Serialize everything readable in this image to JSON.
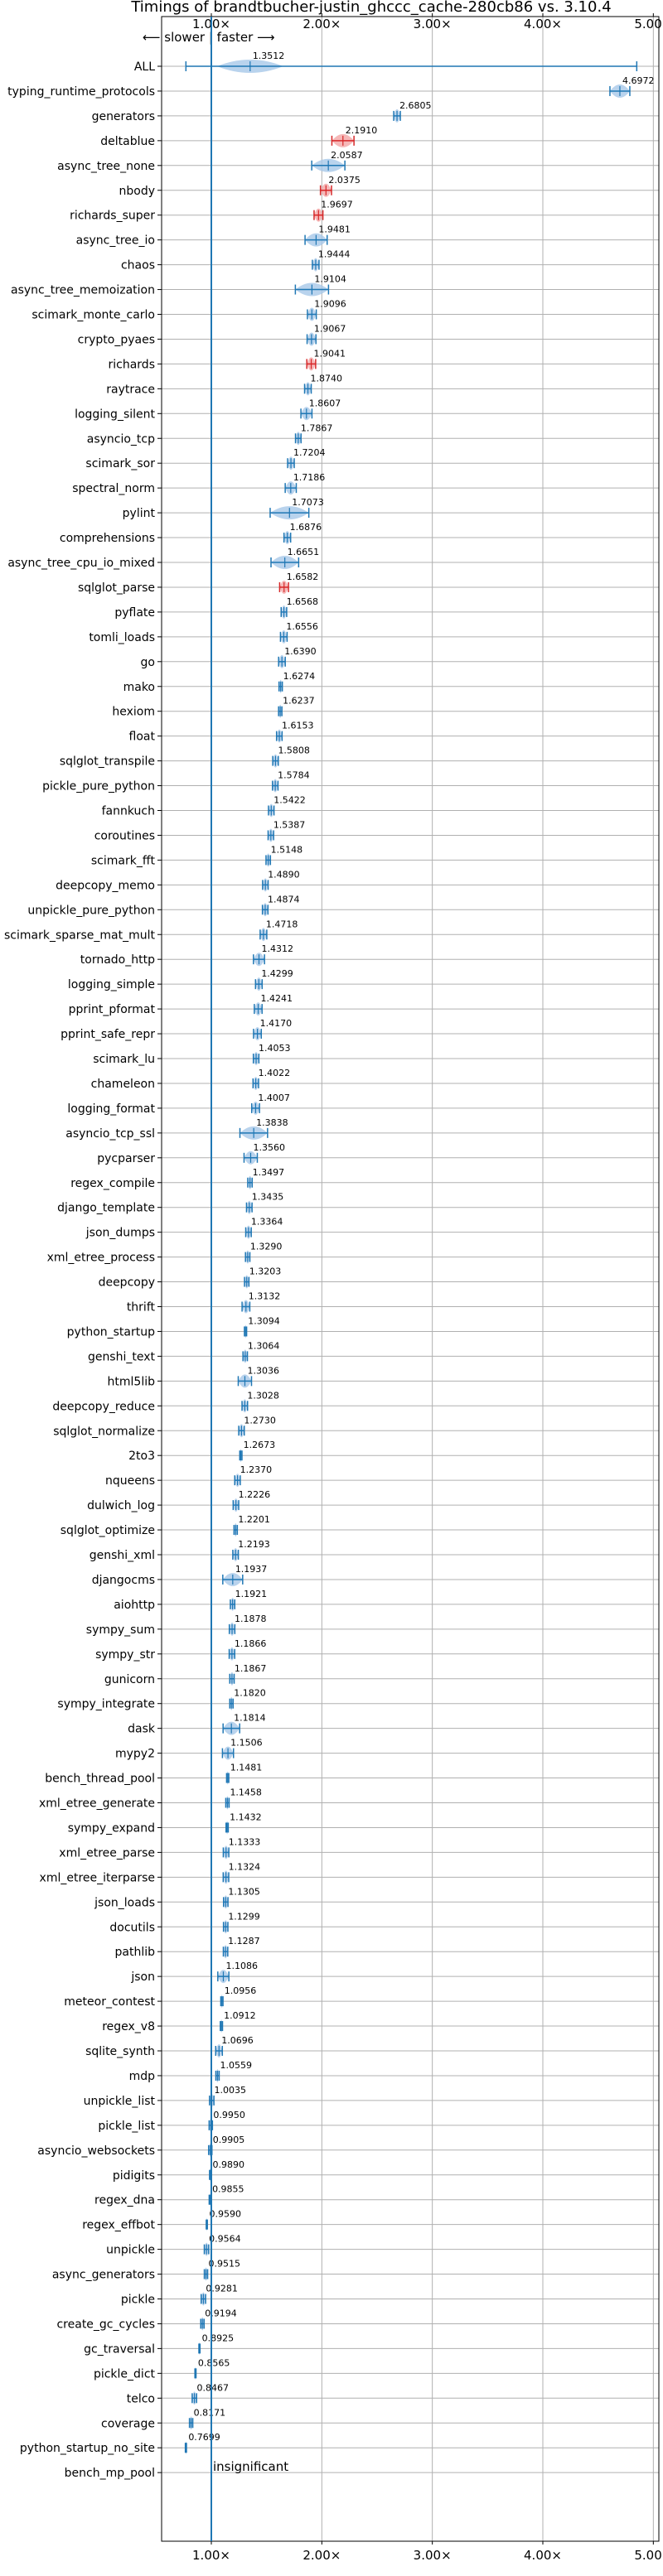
{
  "chart_data": {
    "type": "violin",
    "title": "Timings of brandtbucher-justin_ghccc_cache-280cb86 vs. 3.10.4",
    "direction_label": "⟵ slower | faster ⟶",
    "insignificant_label": "insignificant",
    "x_ticks": [
      {
        "value": 1,
        "label": "1.00×"
      },
      {
        "value": 2,
        "label": "2.00×"
      },
      {
        "value": 3,
        "label": "3.00×"
      },
      {
        "value": 4,
        "label": "4.00×"
      },
      {
        "value": 5,
        "label": "5.00×"
      }
    ],
    "xlim": [
      0.55,
      5.05
    ],
    "reference_line": 1.0,
    "colors": {
      "significant": "#1f77b4",
      "regression": "#d62728",
      "grid": "#b0b0b0"
    },
    "benchmarks": [
      {
        "name": "ALL",
        "value": 1.3512,
        "label": "1.3512",
        "spread": 0.6,
        "whisker_min": 0.77,
        "whisker_max": 4.85
      },
      {
        "name": "typing_runtime_protocols",
        "value": 4.6972,
        "label": "4.6972",
        "spread": 0.18
      },
      {
        "name": "generators",
        "value": 2.6805,
        "label": "2.6805",
        "spread": 0.06
      },
      {
        "name": "deltablue",
        "value": 2.191,
        "label": "2.1910",
        "spread": 0.2,
        "regression": true
      },
      {
        "name": "async_tree_none",
        "value": 2.0587,
        "label": "2.0587",
        "spread": 0.3
      },
      {
        "name": "nbody",
        "value": 2.0375,
        "label": "2.0375",
        "spread": 0.1,
        "regression": true
      },
      {
        "name": "richards_super",
        "value": 1.9697,
        "label": "1.9697",
        "spread": 0.08,
        "regression": true
      },
      {
        "name": "async_tree_io",
        "value": 1.9481,
        "label": "1.9481",
        "spread": 0.2
      },
      {
        "name": "chaos",
        "value": 1.9444,
        "label": "1.9444",
        "spread": 0.06
      },
      {
        "name": "async_tree_memoization",
        "value": 1.9104,
        "label": "1.9104",
        "spread": 0.3
      },
      {
        "name": "scimark_monte_carlo",
        "value": 1.9096,
        "label": "1.9096",
        "spread": 0.08
      },
      {
        "name": "crypto_pyaes",
        "value": 1.9067,
        "label": "1.9067",
        "spread": 0.08
      },
      {
        "name": "richards",
        "value": 1.9041,
        "label": "1.9041",
        "spread": 0.08,
        "regression": true
      },
      {
        "name": "raytrace",
        "value": 1.874,
        "label": "1.8740",
        "spread": 0.06
      },
      {
        "name": "logging_silent",
        "value": 1.8607,
        "label": "1.8607",
        "spread": 0.1
      },
      {
        "name": "asyncio_tcp",
        "value": 1.7867,
        "label": "1.7867",
        "spread": 0.05
      },
      {
        "name": "scimark_sor",
        "value": 1.7204,
        "label": "1.7204",
        "spread": 0.06
      },
      {
        "name": "spectral_norm",
        "value": 1.7186,
        "label": "1.7186",
        "spread": 0.1
      },
      {
        "name": "pylint",
        "value": 1.7073,
        "label": "1.7073",
        "spread": 0.35
      },
      {
        "name": "comprehensions",
        "value": 1.6876,
        "label": "1.6876",
        "spread": 0.06
      },
      {
        "name": "async_tree_cpu_io_mixed",
        "value": 1.6651,
        "label": "1.6651",
        "spread": 0.25
      },
      {
        "name": "sqlglot_parse",
        "value": 1.6582,
        "label": "1.6582",
        "spread": 0.08,
        "regression": true
      },
      {
        "name": "pyflate",
        "value": 1.6568,
        "label": "1.6568",
        "spread": 0.05
      },
      {
        "name": "tomli_loads",
        "value": 1.6556,
        "label": "1.6556",
        "spread": 0.06
      },
      {
        "name": "go",
        "value": 1.639,
        "label": "1.6390",
        "spread": 0.06
      },
      {
        "name": "mako",
        "value": 1.6274,
        "label": "1.6274",
        "spread": 0.03
      },
      {
        "name": "hexiom",
        "value": 1.6237,
        "label": "1.6237",
        "spread": 0.03
      },
      {
        "name": "float",
        "value": 1.6153,
        "label": "1.6153",
        "spread": 0.05
      },
      {
        "name": "sqlglot_transpile",
        "value": 1.5808,
        "label": "1.5808",
        "spread": 0.05
      },
      {
        "name": "pickle_pure_python",
        "value": 1.5784,
        "label": "1.5784",
        "spread": 0.05
      },
      {
        "name": "fannkuch",
        "value": 1.5422,
        "label": "1.5422",
        "spread": 0.05
      },
      {
        "name": "coroutines",
        "value": 1.5387,
        "label": "1.5387",
        "spread": 0.05
      },
      {
        "name": "scimark_fft",
        "value": 1.5148,
        "label": "1.5148",
        "spread": 0.04
      },
      {
        "name": "deepcopy_memo",
        "value": 1.489,
        "label": "1.4890",
        "spread": 0.05
      },
      {
        "name": "unpickle_pure_python",
        "value": 1.4874,
        "label": "1.4874",
        "spread": 0.05
      },
      {
        "name": "scimark_sparse_mat_mult",
        "value": 1.4718,
        "label": "1.4718",
        "spread": 0.06
      },
      {
        "name": "tornado_http",
        "value": 1.4312,
        "label": "1.4312",
        "spread": 0.1
      },
      {
        "name": "logging_simple",
        "value": 1.4299,
        "label": "1.4299",
        "spread": 0.06
      },
      {
        "name": "pprint_pformat",
        "value": 1.4241,
        "label": "1.4241",
        "spread": 0.07
      },
      {
        "name": "pprint_safe_repr",
        "value": 1.417,
        "label": "1.4170",
        "spread": 0.07
      },
      {
        "name": "scimark_lu",
        "value": 1.4053,
        "label": "1.4053",
        "spread": 0.05
      },
      {
        "name": "chameleon",
        "value": 1.4022,
        "label": "1.4022",
        "spread": 0.05
      },
      {
        "name": "logging_format",
        "value": 1.4007,
        "label": "1.4007",
        "spread": 0.07
      },
      {
        "name": "asyncio_tcp_ssl",
        "value": 1.3838,
        "label": "1.3838",
        "spread": 0.25
      },
      {
        "name": "pycparser",
        "value": 1.356,
        "label": "1.3560",
        "spread": 0.12
      },
      {
        "name": "regex_compile",
        "value": 1.3497,
        "label": "1.3497",
        "spread": 0.04
      },
      {
        "name": "django_template",
        "value": 1.3435,
        "label": "1.3435",
        "spread": 0.05
      },
      {
        "name": "json_dumps",
        "value": 1.3364,
        "label": "1.3364",
        "spread": 0.05
      },
      {
        "name": "xml_etree_process",
        "value": 1.329,
        "label": "1.3290",
        "spread": 0.04
      },
      {
        "name": "deepcopy",
        "value": 1.3203,
        "label": "1.3203",
        "spread": 0.04
      },
      {
        "name": "thrift",
        "value": 1.3132,
        "label": "1.3132",
        "spread": 0.07
      },
      {
        "name": "python_startup",
        "value": 1.3094,
        "label": "1.3094",
        "spread": 0.02
      },
      {
        "name": "genshi_text",
        "value": 1.3064,
        "label": "1.3064",
        "spread": 0.04
      },
      {
        "name": "html5lib",
        "value": 1.3036,
        "label": "1.3036",
        "spread": 0.12
      },
      {
        "name": "deepcopy_reduce",
        "value": 1.3028,
        "label": "1.3028",
        "spread": 0.05
      },
      {
        "name": "sqlglot_normalize",
        "value": 1.273,
        "label": "1.2730",
        "spread": 0.05
      },
      {
        "name": "2to3",
        "value": 1.2673,
        "label": "1.2673",
        "spread": 0.02
      },
      {
        "name": "nqueens",
        "value": 1.237,
        "label": "1.2370",
        "spread": 0.05
      },
      {
        "name": "dulwich_log",
        "value": 1.2226,
        "label": "1.2226",
        "spread": 0.05
      },
      {
        "name": "sqlglot_optimize",
        "value": 1.2201,
        "label": "1.2201",
        "spread": 0.03
      },
      {
        "name": "genshi_xml",
        "value": 1.2193,
        "label": "1.2193",
        "spread": 0.05
      },
      {
        "name": "djangocms",
        "value": 1.1937,
        "label": "1.1937",
        "spread": 0.18
      },
      {
        "name": "aiohttp",
        "value": 1.1921,
        "label": "1.1921",
        "spread": 0.04
      },
      {
        "name": "sympy_sum",
        "value": 1.1878,
        "label": "1.1878",
        "spread": 0.05
      },
      {
        "name": "sympy_str",
        "value": 1.1866,
        "label": "1.1866",
        "spread": 0.05
      },
      {
        "name": "gunicorn",
        "value": 1.1867,
        "label": "1.1867",
        "spread": 0.04
      },
      {
        "name": "sympy_integrate",
        "value": 1.182,
        "label": "1.1820",
        "spread": 0.03
      },
      {
        "name": "dask",
        "value": 1.1814,
        "label": "1.1814",
        "spread": 0.15
      },
      {
        "name": "mypy2",
        "value": 1.1506,
        "label": "1.1506",
        "spread": 0.1
      },
      {
        "name": "bench_thread_pool",
        "value": 1.1481,
        "label": "1.1481",
        "spread": 0.02
      },
      {
        "name": "xml_etree_generate",
        "value": 1.1458,
        "label": "1.1458",
        "spread": 0.03
      },
      {
        "name": "sympy_expand",
        "value": 1.1432,
        "label": "1.1432",
        "spread": 0.02
      },
      {
        "name": "xml_etree_parse",
        "value": 1.1333,
        "label": "1.1333",
        "spread": 0.05
      },
      {
        "name": "xml_etree_iterparse",
        "value": 1.1324,
        "label": "1.1324",
        "spread": 0.05
      },
      {
        "name": "json_loads",
        "value": 1.1305,
        "label": "1.1305",
        "spread": 0.04
      },
      {
        "name": "docutils",
        "value": 1.1299,
        "label": "1.1299",
        "spread": 0.04
      },
      {
        "name": "pathlib",
        "value": 1.1287,
        "label": "1.1287",
        "spread": 0.04
      },
      {
        "name": "json",
        "value": 1.1086,
        "label": "1.1086",
        "spread": 0.1
      },
      {
        "name": "meteor_contest",
        "value": 1.0956,
        "label": "1.0956",
        "spread": 0.02
      },
      {
        "name": "regex_v8",
        "value": 1.0912,
        "label": "1.0912",
        "spread": 0.02
      },
      {
        "name": "sqlite_synth",
        "value": 1.0696,
        "label": "1.0696",
        "spread": 0.06
      },
      {
        "name": "mdp",
        "value": 1.0559,
        "label": "1.0559",
        "spread": 0.03
      },
      {
        "name": "unpickle_list",
        "value": 1.0035,
        "label": "1.0035",
        "spread": 0.04
      },
      {
        "name": "pickle_list",
        "value": 0.995,
        "label": "0.9950",
        "spread": 0.03
      },
      {
        "name": "asyncio_websockets",
        "value": 0.9905,
        "label": "0.9905",
        "spread": 0.03
      },
      {
        "name": "pidigits",
        "value": 0.989,
        "label": "0.9890",
        "spread": 0.01
      },
      {
        "name": "regex_dna",
        "value": 0.9855,
        "label": "0.9855",
        "spread": 0.01
      },
      {
        "name": "regex_effbot",
        "value": 0.959,
        "label": "0.9590",
        "spread": 0.01
      },
      {
        "name": "unpickle",
        "value": 0.9564,
        "label": "0.9564",
        "spread": 0.04
      },
      {
        "name": "async_generators",
        "value": 0.9515,
        "label": "0.9515",
        "spread": 0.03
      },
      {
        "name": "pickle",
        "value": 0.9281,
        "label": "0.9281",
        "spread": 0.04
      },
      {
        "name": "create_gc_cycles",
        "value": 0.9194,
        "label": "0.9194",
        "spread": 0.03
      },
      {
        "name": "gc_traversal",
        "value": 0.8925,
        "label": "0.8925",
        "spread": 0.01
      },
      {
        "name": "pickle_dict",
        "value": 0.8565,
        "label": "0.8565",
        "spread": 0.01
      },
      {
        "name": "telco",
        "value": 0.8467,
        "label": "0.8467",
        "spread": 0.04
      },
      {
        "name": "coverage",
        "value": 0.8171,
        "label": "0.8171",
        "spread": 0.03
      },
      {
        "name": "python_startup_no_site",
        "value": 0.7699,
        "label": "0.7699",
        "spread": 0.01
      },
      {
        "name": "bench_mp_pool",
        "value": null,
        "label": "",
        "insignificant": true
      }
    ]
  }
}
